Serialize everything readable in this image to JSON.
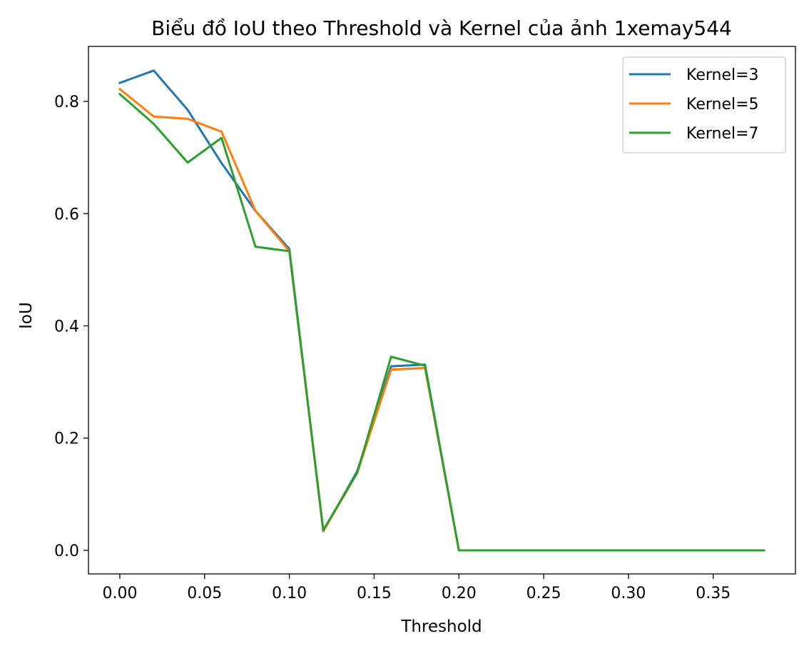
{
  "chart_data": {
    "type": "line",
    "title": "Biểu đồ IoU theo Threshold và Kernel của ảnh 1xemay544",
    "xlabel": "Threshold",
    "ylabel": "IoU",
    "x": [
      0.0,
      0.02,
      0.04,
      0.06,
      0.08,
      0.1,
      0.12,
      0.14,
      0.16,
      0.18,
      0.2,
      0.22,
      0.24,
      0.26,
      0.28,
      0.3,
      0.32,
      0.34,
      0.36,
      0.38
    ],
    "xlim": [
      -0.0185,
      0.3985
    ],
    "ylim": [
      -0.042,
      0.898
    ],
    "xticks": [
      "0.00",
      "0.05",
      "0.10",
      "0.15",
      "0.20",
      "0.25",
      "0.30",
      "0.35"
    ],
    "yticks": [
      "0.0",
      "0.2",
      "0.4",
      "0.6",
      "0.8"
    ],
    "legend_position": "top-right",
    "grid": false,
    "series": [
      {
        "name": "Kernel=3",
        "color": "#1f77b4",
        "values": [
          0.833,
          0.855,
          0.785,
          0.69,
          0.605,
          0.537,
          0.034,
          0.141,
          0.328,
          0.331,
          0.0,
          0.0,
          0.0,
          0.0,
          0.0,
          0.0,
          0.0,
          0.0,
          0.0,
          0.0
        ]
      },
      {
        "name": "Kernel=5",
        "color": "#ff7f0e",
        "values": [
          0.822,
          0.773,
          0.769,
          0.746,
          0.605,
          0.533,
          0.034,
          0.138,
          0.322,
          0.325,
          0.0,
          0.0,
          0.0,
          0.0,
          0.0,
          0.0,
          0.0,
          0.0,
          0.0,
          0.0
        ]
      },
      {
        "name": "Kernel=7",
        "color": "#2ca02c",
        "values": [
          0.813,
          0.76,
          0.691,
          0.735,
          0.541,
          0.533,
          0.036,
          0.138,
          0.345,
          0.329,
          0.0,
          0.0,
          0.0,
          0.0,
          0.0,
          0.0,
          0.0,
          0.0,
          0.0,
          0.0
        ]
      }
    ]
  }
}
